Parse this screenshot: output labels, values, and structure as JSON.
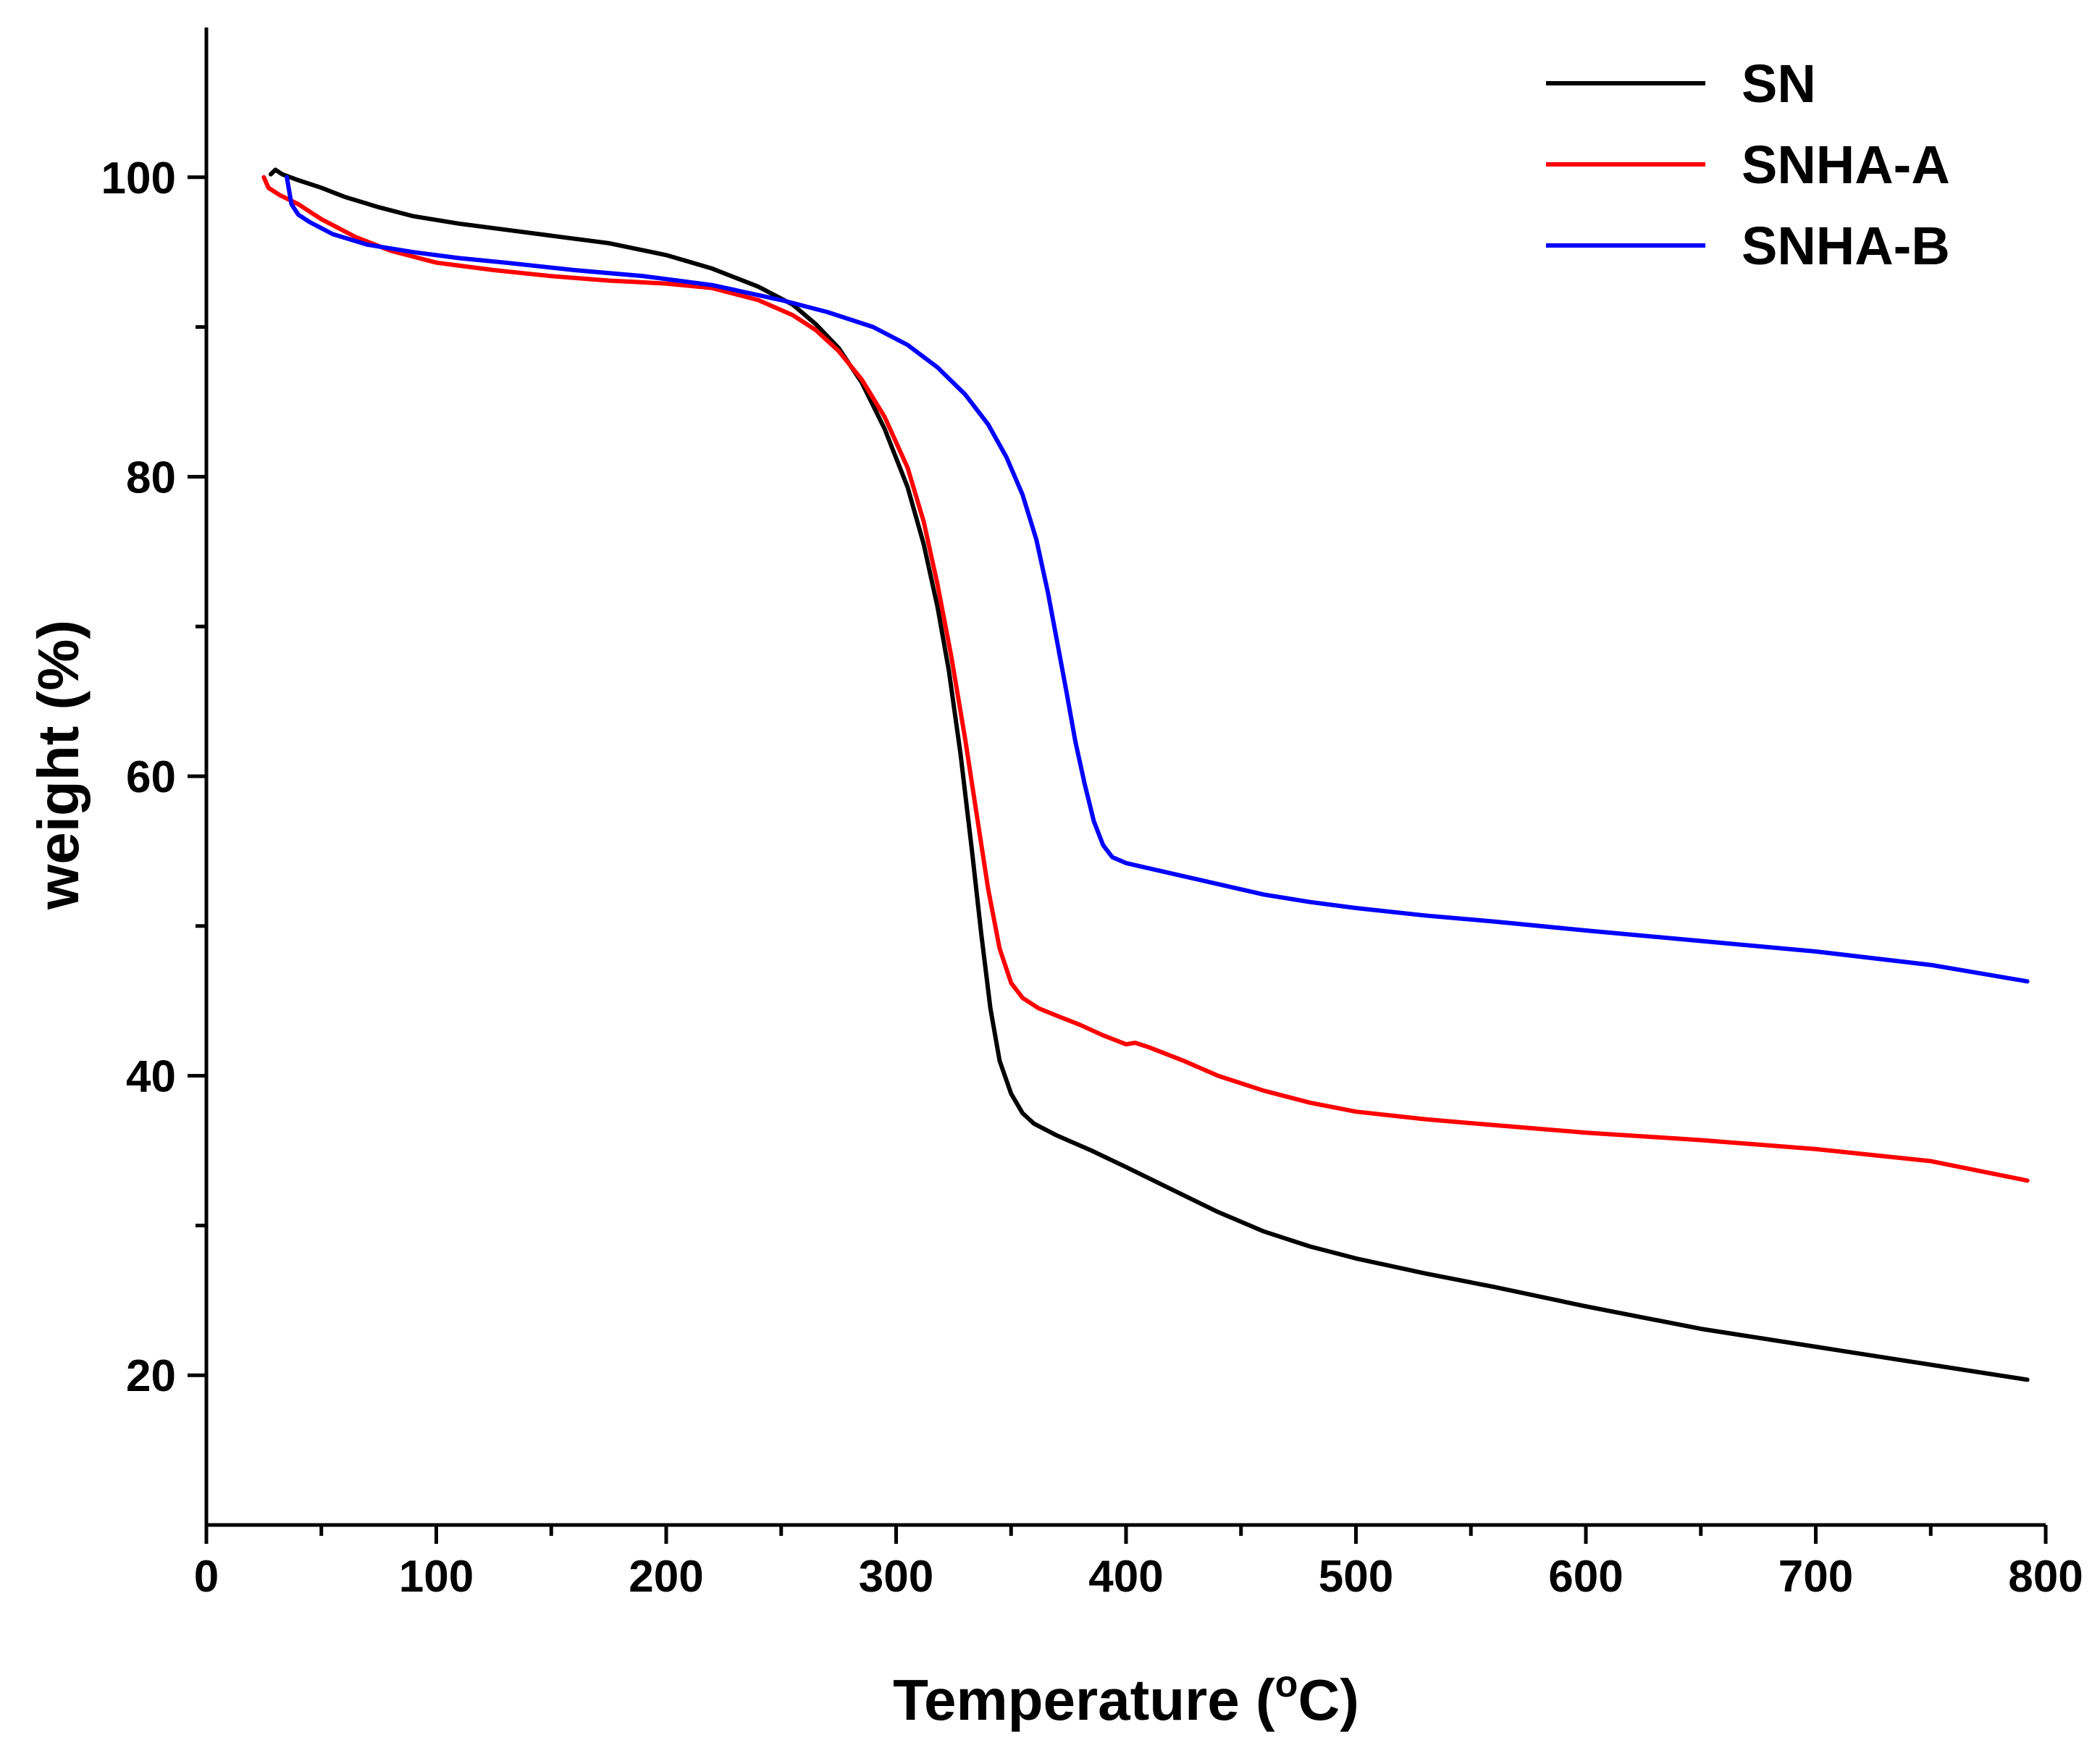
{
  "chart_data": {
    "type": "line",
    "title": "",
    "xlabel": "Temperature (",
    "xlabel_superscript": "o",
    "xlabel_suffix": "C)",
    "ylabel": "weight (%)",
    "xlim": [
      0,
      800
    ],
    "ylim": [
      10,
      110
    ],
    "xticks": [
      0,
      100,
      200,
      300,
      400,
      500,
      600,
      700,
      800
    ],
    "yticks": [
      20,
      40,
      60,
      80,
      100
    ],
    "x_minor_step": 50,
    "y_minor_step": 10,
    "grid": false,
    "legend_position": "top-right",
    "series": [
      {
        "name": "SN",
        "color": "#000000",
        "points": [
          [
            28,
            100.2
          ],
          [
            30,
            100.5
          ],
          [
            33,
            100.2
          ],
          [
            40,
            99.8
          ],
          [
            50,
            99.3
          ],
          [
            60,
            98.7
          ],
          [
            75,
            98.0
          ],
          [
            90,
            97.4
          ],
          [
            110,
            96.9
          ],
          [
            130,
            96.5
          ],
          [
            150,
            96.1
          ],
          [
            175,
            95.6
          ],
          [
            200,
            94.8
          ],
          [
            220,
            93.9
          ],
          [
            240,
            92.7
          ],
          [
            255,
            91.5
          ],
          [
            265,
            90.2
          ],
          [
            275,
            88.6
          ],
          [
            285,
            86.3
          ],
          [
            295,
            83.2
          ],
          [
            305,
            79.3
          ],
          [
            312,
            75.5
          ],
          [
            318,
            71.3
          ],
          [
            323,
            67.0
          ],
          [
            328,
            61.5
          ],
          [
            333,
            55.0
          ],
          [
            337,
            49.5
          ],
          [
            341,
            44.5
          ],
          [
            345,
            41.0
          ],
          [
            350,
            38.8
          ],
          [
            355,
            37.5
          ],
          [
            360,
            36.8
          ],
          [
            370,
            36.0
          ],
          [
            385,
            35.0
          ],
          [
            400,
            33.9
          ],
          [
            420,
            32.4
          ],
          [
            440,
            30.9
          ],
          [
            460,
            29.6
          ],
          [
            480,
            28.6
          ],
          [
            500,
            27.8
          ],
          [
            530,
            26.8
          ],
          [
            560,
            25.9
          ],
          [
            600,
            24.6
          ],
          [
            650,
            23.1
          ],
          [
            700,
            21.9
          ],
          [
            750,
            20.7
          ],
          [
            792,
            19.7
          ]
        ]
      },
      {
        "name": "SNHA-A",
        "color": "#ff0000",
        "points": [
          [
            25,
            100.0
          ],
          [
            27,
            99.3
          ],
          [
            32,
            98.8
          ],
          [
            40,
            98.2
          ],
          [
            50,
            97.2
          ],
          [
            65,
            96.0
          ],
          [
            80,
            95.1
          ],
          [
            100,
            94.3
          ],
          [
            125,
            93.8
          ],
          [
            150,
            93.4
          ],
          [
            175,
            93.1
          ],
          [
            200,
            92.9
          ],
          [
            220,
            92.6
          ],
          [
            240,
            91.8
          ],
          [
            255,
            90.8
          ],
          [
            265,
            89.8
          ],
          [
            275,
            88.4
          ],
          [
            285,
            86.5
          ],
          [
            295,
            84.0
          ],
          [
            305,
            80.6
          ],
          [
            312,
            77.0
          ],
          [
            318,
            72.8
          ],
          [
            324,
            68.0
          ],
          [
            330,
            62.5
          ],
          [
            335,
            57.5
          ],
          [
            340,
            52.5
          ],
          [
            345,
            48.5
          ],
          [
            350,
            46.2
          ],
          [
            355,
            45.2
          ],
          [
            362,
            44.5
          ],
          [
            370,
            44.0
          ],
          [
            380,
            43.4
          ],
          [
            390,
            42.7
          ],
          [
            400,
            42.1
          ],
          [
            404,
            42.2
          ],
          [
            410,
            41.9
          ],
          [
            425,
            41.0
          ],
          [
            440,
            40.0
          ],
          [
            460,
            39.0
          ],
          [
            480,
            38.2
          ],
          [
            500,
            37.6
          ],
          [
            530,
            37.1
          ],
          [
            560,
            36.7
          ],
          [
            600,
            36.2
          ],
          [
            650,
            35.7
          ],
          [
            700,
            35.1
          ],
          [
            750,
            34.3
          ],
          [
            792,
            33.0
          ]
        ]
      },
      {
        "name": "SNHA-B",
        "color": "#0000ff",
        "points": [
          [
            35,
            100.0
          ],
          [
            37,
            98.2
          ],
          [
            40,
            97.5
          ],
          [
            45,
            97.0
          ],
          [
            55,
            96.2
          ],
          [
            70,
            95.5
          ],
          [
            90,
            95.0
          ],
          [
            110,
            94.6
          ],
          [
            130,
            94.3
          ],
          [
            160,
            93.8
          ],
          [
            190,
            93.4
          ],
          [
            220,
            92.8
          ],
          [
            250,
            91.8
          ],
          [
            270,
            91.0
          ],
          [
            290,
            90.0
          ],
          [
            305,
            88.8
          ],
          [
            318,
            87.3
          ],
          [
            330,
            85.5
          ],
          [
            340,
            83.5
          ],
          [
            348,
            81.3
          ],
          [
            355,
            78.8
          ],
          [
            361,
            75.8
          ],
          [
            366,
            72.3
          ],
          [
            370,
            69.0
          ],
          [
            374,
            65.7
          ],
          [
            378,
            62.3
          ],
          [
            382,
            59.5
          ],
          [
            386,
            57.0
          ],
          [
            390,
            55.4
          ],
          [
            394,
            54.6
          ],
          [
            400,
            54.2
          ],
          [
            420,
            53.5
          ],
          [
            440,
            52.8
          ],
          [
            460,
            52.1
          ],
          [
            480,
            51.6
          ],
          [
            500,
            51.2
          ],
          [
            530,
            50.7
          ],
          [
            560,
            50.3
          ],
          [
            600,
            49.7
          ],
          [
            650,
            49.0
          ],
          [
            700,
            48.3
          ],
          [
            750,
            47.4
          ],
          [
            792,
            46.3
          ]
        ]
      }
    ]
  }
}
